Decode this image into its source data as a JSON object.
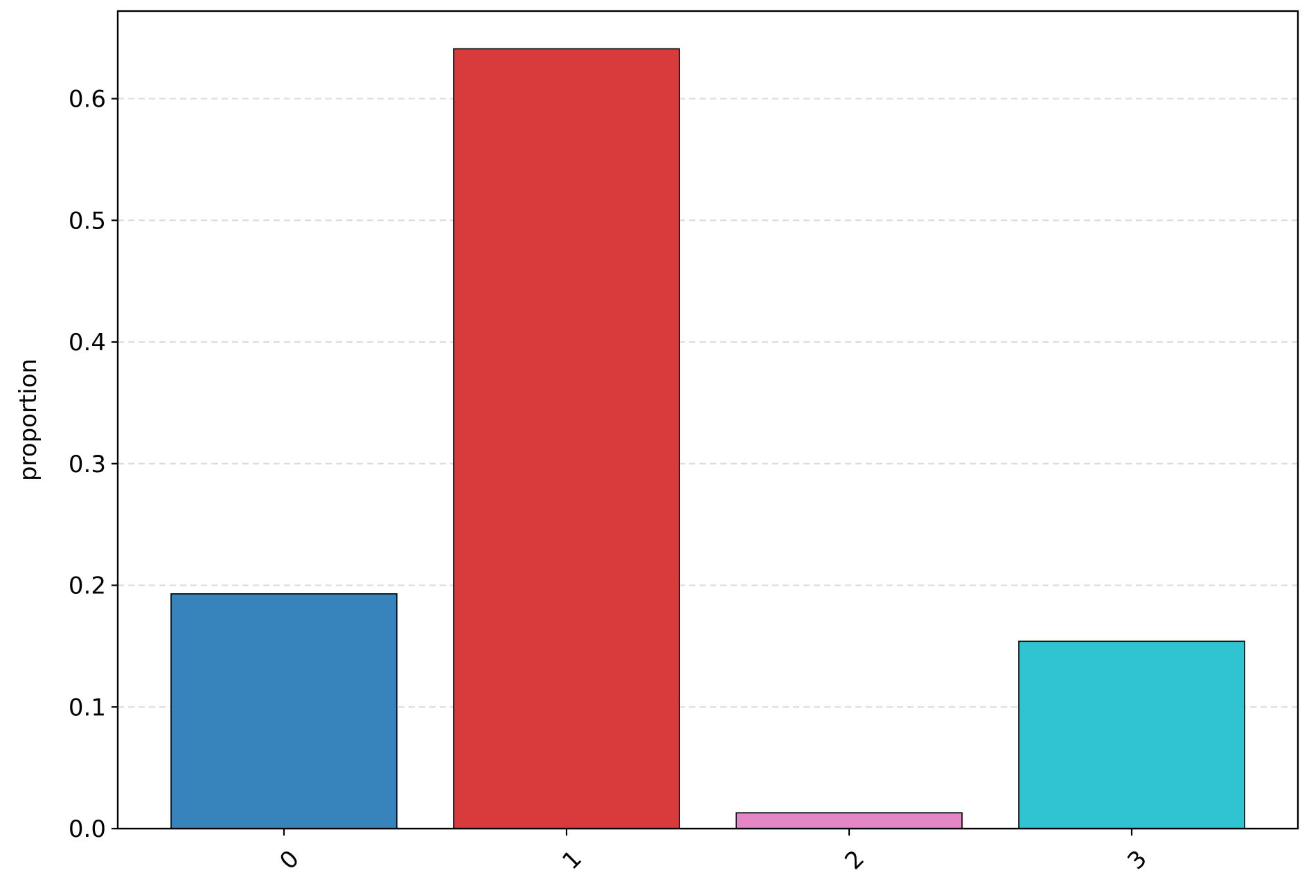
{
  "chart_data": {
    "type": "bar",
    "title": "",
    "xlabel": "",
    "ylabel": "proportion",
    "categories": [
      "0",
      "1",
      "2",
      "3"
    ],
    "values": [
      0.193,
      0.641,
      0.013,
      0.154
    ],
    "colors": [
      "#3784bc",
      "#d93b3c",
      "#e587c6",
      "#30c4d2"
    ],
    "ylim": [
      0,
      0.672
    ],
    "yticks": [
      0.0,
      0.1,
      0.2,
      0.3,
      0.4,
      0.5,
      0.6
    ],
    "ytick_labels": [
      "0.0",
      "0.1",
      "0.2",
      "0.3",
      "0.4",
      "0.5",
      "0.6"
    ],
    "grid": "horizontal dashed",
    "legend": "none",
    "xtick_rotation": -45
  }
}
